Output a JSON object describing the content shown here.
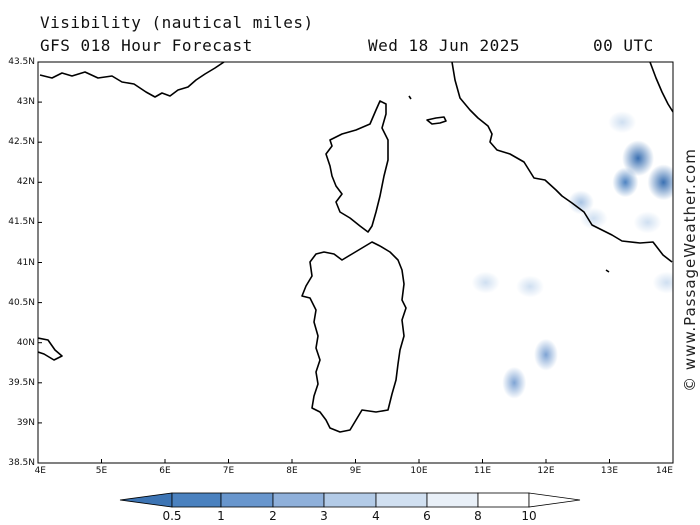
{
  "header": {
    "title": "Visibility (nautical miles)",
    "subtitle": "GFS 018 Hour Forecast",
    "date": "Wed 18 Jun 2025",
    "time": "00 UTC"
  },
  "watermark": "© www.PassageWeather.com",
  "map": {
    "lon_range": [
      4,
      14
    ],
    "lat_range": [
      38.5,
      43.5
    ],
    "lon_labels": [
      "4E",
      "5E",
      "6E",
      "7E",
      "8E",
      "9E",
      "10E",
      "11E",
      "12E",
      "13E",
      "14E"
    ],
    "lat_labels": [
      "43.5N",
      "43N",
      "42.5N",
      "42N",
      "41.5N",
      "41N",
      "40.5N",
      "40N",
      "39.5N",
      "39N",
      "38.5N"
    ],
    "coast_color": "#000000",
    "low_visibility_areas": [
      {
        "lon": 12.0,
        "lat": 39.85,
        "level": 3
      },
      {
        "lon": 11.5,
        "lat": 39.5,
        "level": 3
      },
      {
        "lon": 11.05,
        "lat": 40.75,
        "level": 1
      },
      {
        "lon": 11.75,
        "lat": 40.7,
        "level": 1
      },
      {
        "lon": 12.55,
        "lat": 41.75,
        "level": 2
      },
      {
        "lon": 12.75,
        "lat": 41.55,
        "level": 1
      },
      {
        "lon": 13.25,
        "lat": 42.0,
        "level": 4
      },
      {
        "lon": 13.45,
        "lat": 42.3,
        "level": 5
      },
      {
        "lon": 13.85,
        "lat": 42.0,
        "level": 5
      },
      {
        "lon": 13.2,
        "lat": 42.75,
        "level": 1
      },
      {
        "lon": 13.6,
        "lat": 41.5,
        "level": 1
      },
      {
        "lon": 13.9,
        "lat": 40.75,
        "level": 1
      }
    ]
  },
  "colorbar": {
    "labels": [
      "0.5",
      "1",
      "2",
      "3",
      "4",
      "6",
      "8",
      "10"
    ],
    "colors": [
      "#3c74b4",
      "#4a81bf",
      "#6896cd",
      "#8fb0da",
      "#b3cbe7",
      "#d1e0f1",
      "#e9f0f8",
      "#ffffff"
    ]
  }
}
